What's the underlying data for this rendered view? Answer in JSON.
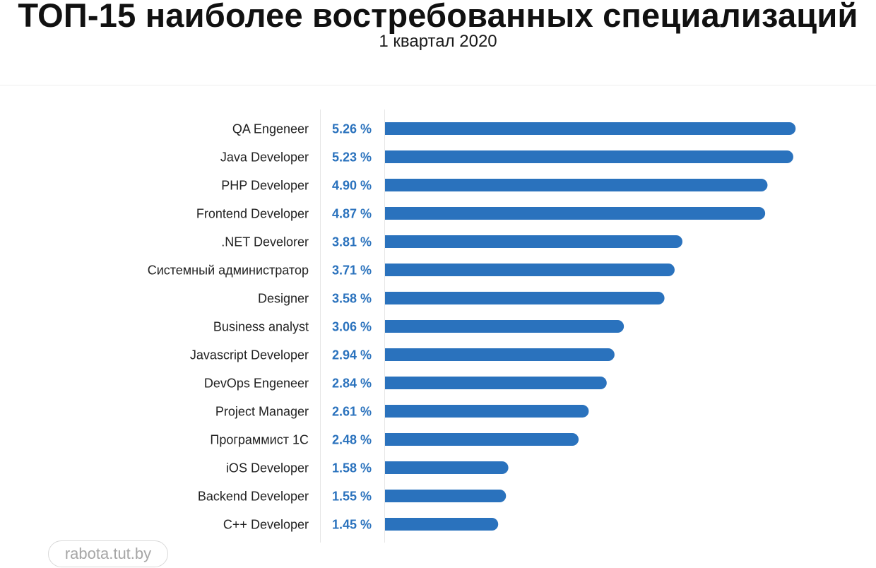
{
  "chart_data": {
    "type": "bar",
    "orientation": "horizontal",
    "title": "ТОП-15 наиболее востребованных специализаций",
    "subtitle": "1 квартал 2020",
    "categories": [
      "QA Engeneer",
      "Java Developer",
      "PHP Developer",
      "Frontend Developer",
      ".NET Develorer",
      "Системный администратор",
      "Designer",
      "Business analyst",
      "Javascript Developer",
      "DevOps Engeneer",
      "Project Manager",
      "Программист 1С",
      "iOS Developer",
      "Backend Developer",
      "C++ Developer"
    ],
    "values": [
      5.26,
      5.23,
      4.9,
      4.87,
      3.81,
      3.71,
      3.58,
      3.06,
      2.94,
      2.84,
      2.61,
      2.48,
      1.58,
      1.55,
      1.45
    ],
    "value_labels": [
      "5.26 %",
      "5.23 %",
      "4.90 %",
      "4.87 %",
      "3.81 %",
      "3.71 %",
      "3.58 %",
      "3.06 %",
      "2.94 %",
      "2.84 %",
      "2.61 %",
      "2.48 %",
      "1.58 %",
      "1.55 %",
      "1.45 %"
    ],
    "unit": "%",
    "grid": false,
    "legend": "none",
    "colors": {
      "bar": "#2a72bd",
      "value_label": "#2a72bd",
      "category_label": "#222222",
      "divider": "#e6e6e6"
    }
  },
  "watermark": "rabota.tut.by"
}
